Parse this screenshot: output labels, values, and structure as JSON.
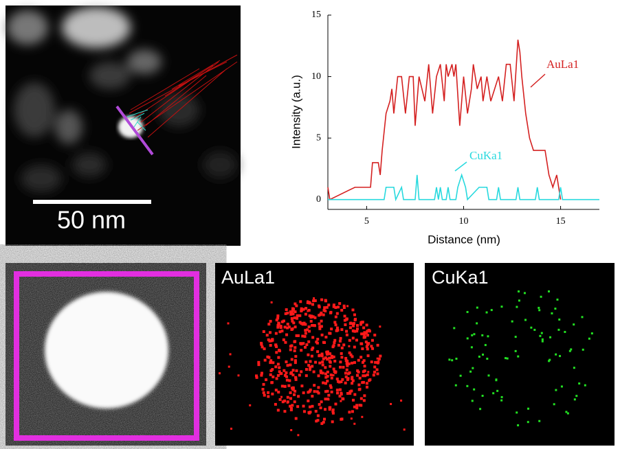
{
  "chart_data": {
    "type": "line",
    "xlabel": "Distance (nm)",
    "ylabel": "Intensity (a.u.)",
    "xlim": [
      3,
      17
    ],
    "ylim": [
      -0.8,
      15
    ],
    "xticks": [
      5,
      10,
      15
    ],
    "yticks": [
      0,
      5,
      10,
      15
    ],
    "series": [
      {
        "name": "AuLa1",
        "color": "#d42020",
        "x": [
          3.0,
          3.1,
          4.4,
          5.2,
          5.3,
          5.6,
          5.7,
          5.8,
          6.0,
          6.2,
          6.3,
          6.4,
          6.6,
          6.8,
          7.0,
          7.2,
          7.4,
          7.5,
          7.7,
          8.0,
          8.2,
          8.4,
          8.6,
          8.8,
          9.0,
          9.1,
          9.2,
          9.4,
          9.5,
          9.6,
          9.8,
          10.0,
          10.2,
          10.4,
          10.5,
          10.7,
          10.9,
          11.0,
          11.2,
          11.4,
          11.6,
          11.8,
          12.0,
          12.2,
          12.4,
          12.6,
          12.8,
          12.9,
          13.0,
          13.2,
          13.4,
          13.6,
          14.2,
          14.4,
          14.6,
          14.8,
          15.0
        ],
        "values": [
          1,
          0,
          1,
          1,
          3,
          3,
          2,
          4,
          7,
          8,
          9,
          7,
          10,
          10,
          7,
          10,
          10,
          6,
          10,
          8,
          11,
          7,
          10,
          11,
          8,
          11,
          10,
          11,
          10,
          11,
          6,
          10,
          7,
          9,
          11,
          9,
          10,
          8,
          10,
          8,
          9,
          10,
          8,
          11,
          11,
          8,
          13,
          12,
          10,
          7,
          5,
          4,
          4,
          2,
          1,
          2,
          0
        ]
      },
      {
        "name": "CuKa1",
        "color": "#27d9de",
        "x": [
          3.0,
          5.9,
          6.0,
          6.4,
          6.5,
          6.8,
          6.9,
          7.5,
          7.6,
          7.7,
          8.5,
          8.6,
          8.7,
          8.8,
          8.9,
          9.1,
          9.2,
          9.3,
          9.6,
          9.7,
          9.9,
          10.1,
          10.2,
          10.8,
          11.2,
          11.3,
          11.7,
          11.8,
          11.9,
          12.7,
          12.8,
          12.9,
          13.7,
          13.8,
          13.9,
          14.9,
          15.0,
          15.1,
          17.0
        ],
        "values": [
          0,
          0,
          1,
          1,
          0,
          1,
          0,
          0,
          2,
          0,
          0,
          1,
          0,
          1,
          0,
          0,
          1,
          0,
          0,
          1,
          2,
          1,
          0,
          1,
          1,
          0,
          0,
          1,
          0,
          0,
          1,
          0,
          0,
          1,
          0,
          0,
          1,
          0,
          0
        ]
      }
    ],
    "annotations": [
      "AuLa1",
      "CuKa1"
    ]
  },
  "images": {
    "scale_bar": "50 nm",
    "maps": [
      "AuLa1",
      "CuKa1"
    ]
  }
}
